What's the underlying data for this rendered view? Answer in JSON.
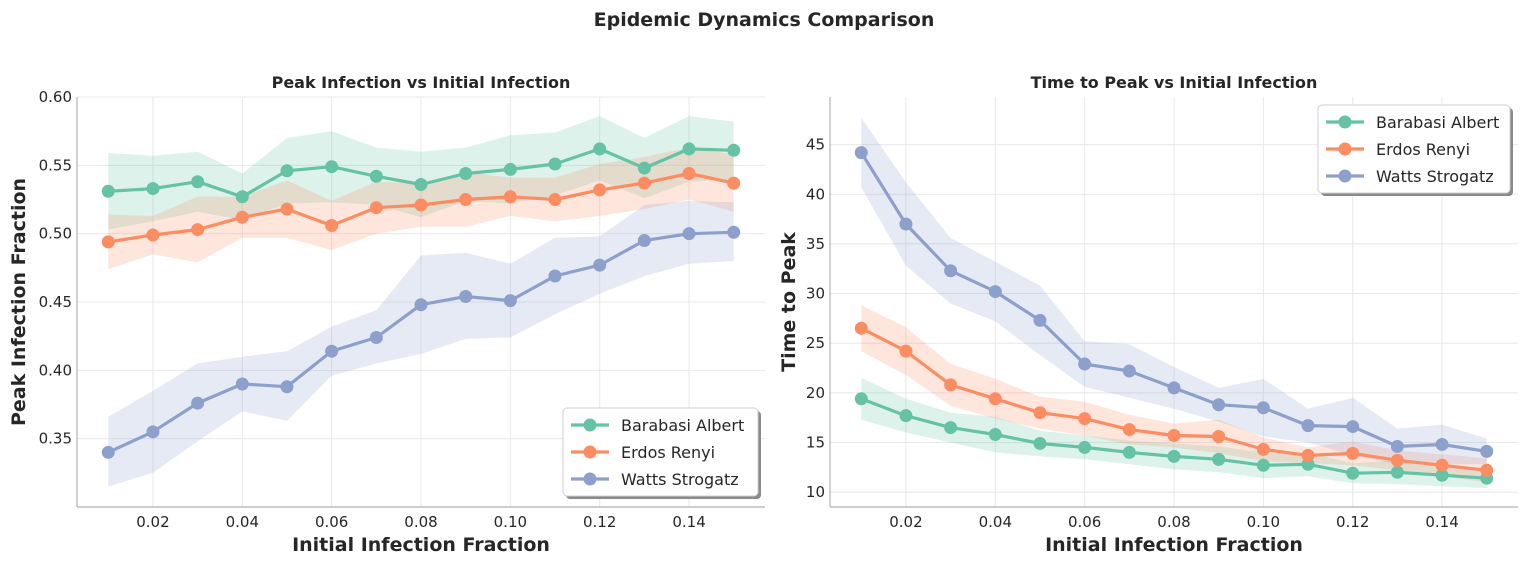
{
  "figure": {
    "title": "Epidemic Dynamics Comparison"
  },
  "chart_data": [
    {
      "type": "line",
      "title": "Peak Infection vs Initial Infection",
      "xlabel": "Initial Infection Fraction",
      "ylabel": "Peak Infection Fraction",
      "xlim": [
        0.003,
        0.157
      ],
      "ylim": [
        0.3,
        0.6
      ],
      "xticks": [
        0.02,
        0.04,
        0.06,
        0.08,
        0.1,
        0.12,
        0.14
      ],
      "xtick_labels": [
        "0.02",
        "0.04",
        "0.06",
        "0.08",
        "0.10",
        "0.12",
        "0.14"
      ],
      "yticks": [
        0.35,
        0.4,
        0.45,
        0.5,
        0.55,
        0.6
      ],
      "ytick_labels": [
        "0.35",
        "0.40",
        "0.45",
        "0.50",
        "0.55",
        "0.60"
      ],
      "grid": true,
      "legend_position": "lower-right",
      "x": [
        0.01,
        0.02,
        0.03,
        0.04,
        0.05,
        0.06,
        0.07,
        0.08,
        0.09,
        0.1,
        0.11,
        0.12,
        0.13,
        0.14,
        0.15
      ],
      "series": [
        {
          "name": "Barabasi Albert",
          "color": "#66c2a5",
          "values": [
            0.531,
            0.533,
            0.538,
            0.527,
            0.546,
            0.549,
            0.542,
            0.536,
            0.544,
            0.547,
            0.551,
            0.562,
            0.548,
            0.562,
            0.561
          ],
          "lower": [
            0.503,
            0.509,
            0.516,
            0.51,
            0.522,
            0.523,
            0.521,
            0.512,
            0.524,
            0.522,
            0.528,
            0.539,
            0.526,
            0.538,
            0.54
          ],
          "upper": [
            0.559,
            0.557,
            0.56,
            0.544,
            0.57,
            0.575,
            0.563,
            0.56,
            0.563,
            0.572,
            0.574,
            0.586,
            0.57,
            0.586,
            0.582
          ]
        },
        {
          "name": "Erdos Renyi",
          "color": "#fc8d62",
          "values": [
            0.494,
            0.499,
            0.503,
            0.512,
            0.518,
            0.506,
            0.519,
            0.521,
            0.525,
            0.527,
            0.525,
            0.532,
            0.537,
            0.544,
            0.537
          ],
          "lower": [
            0.474,
            0.485,
            0.479,
            0.497,
            0.497,
            0.488,
            0.5,
            0.505,
            0.505,
            0.513,
            0.509,
            0.513,
            0.518,
            0.525,
            0.516
          ],
          "upper": [
            0.514,
            0.513,
            0.527,
            0.527,
            0.539,
            0.524,
            0.538,
            0.537,
            0.545,
            0.541,
            0.541,
            0.551,
            0.556,
            0.563,
            0.558
          ]
        },
        {
          "name": "Watts Strogatz",
          "color": "#8da0cb",
          "values": [
            0.34,
            0.355,
            0.376,
            0.39,
            0.388,
            0.414,
            0.424,
            0.448,
            0.454,
            0.451,
            0.469,
            0.477,
            0.495,
            0.5,
            0.501
          ],
          "lower": [
            0.315,
            0.325,
            0.348,
            0.37,
            0.363,
            0.396,
            0.405,
            0.412,
            0.423,
            0.424,
            0.441,
            0.456,
            0.469,
            0.478,
            0.48
          ],
          "upper": [
            0.366,
            0.385,
            0.405,
            0.41,
            0.414,
            0.432,
            0.444,
            0.484,
            0.486,
            0.478,
            0.497,
            0.498,
            0.521,
            0.524,
            0.523
          ]
        }
      ]
    },
    {
      "type": "line",
      "title": "Time to Peak vs Initial Infection",
      "xlabel": "Initial Infection Fraction",
      "ylabel": "Time to Peak",
      "xlim": [
        0.003,
        0.157
      ],
      "ylim": [
        8.5,
        49.8
      ],
      "xticks": [
        0.02,
        0.04,
        0.06,
        0.08,
        0.1,
        0.12,
        0.14
      ],
      "xtick_labels": [
        "0.02",
        "0.04",
        "0.06",
        "0.08",
        "0.10",
        "0.12",
        "0.14"
      ],
      "yticks": [
        10,
        15,
        20,
        25,
        30,
        35,
        40,
        45
      ],
      "ytick_labels": [
        "10",
        "15",
        "20",
        "25",
        "30",
        "35",
        "40",
        "45"
      ],
      "grid": true,
      "legend_position": "upper-right",
      "x": [
        0.01,
        0.02,
        0.03,
        0.04,
        0.05,
        0.06,
        0.07,
        0.08,
        0.09,
        0.1,
        0.11,
        0.12,
        0.13,
        0.14,
        0.15
      ],
      "series": [
        {
          "name": "Barabasi Albert",
          "color": "#66c2a5",
          "values": [
            19.4,
            17.7,
            16.5,
            15.8,
            14.9,
            14.5,
            14.0,
            13.6,
            13.3,
            12.7,
            12.8,
            11.9,
            12.0,
            11.7,
            11.4
          ],
          "lower": [
            17.3,
            16.0,
            15.0,
            14.0,
            13.6,
            13.3,
            12.8,
            12.3,
            12.0,
            11.4,
            11.6,
            10.9,
            10.8,
            10.6,
            10.4
          ],
          "upper": [
            21.5,
            19.4,
            18.0,
            17.6,
            16.2,
            15.7,
            15.2,
            14.9,
            14.6,
            14.0,
            14.0,
            12.9,
            13.2,
            12.8,
            12.4
          ]
        },
        {
          "name": "Erdos Renyi",
          "color": "#fc8d62",
          "values": [
            26.5,
            24.2,
            20.8,
            19.4,
            18.0,
            17.4,
            16.3,
            15.7,
            15.6,
            14.3,
            13.7,
            13.9,
            13.2,
            12.7,
            12.2
          ],
          "lower": [
            24.2,
            21.8,
            18.7,
            17.4,
            16.4,
            15.7,
            14.8,
            14.5,
            13.9,
            13.1,
            12.9,
            12.7,
            12.2,
            11.6,
            11.0
          ],
          "upper": [
            28.8,
            26.6,
            22.9,
            21.4,
            19.6,
            19.1,
            17.8,
            16.9,
            17.3,
            15.5,
            14.5,
            15.1,
            14.2,
            13.8,
            13.4
          ]
        },
        {
          "name": "Watts Strogatz",
          "color": "#8da0cb",
          "values": [
            44.2,
            37.0,
            32.3,
            30.2,
            27.3,
            22.9,
            22.2,
            20.5,
            18.8,
            18.5,
            16.7,
            16.6,
            14.6,
            14.8,
            14.1
          ],
          "lower": [
            40.7,
            32.8,
            29.0,
            27.2,
            23.8,
            20.6,
            19.5,
            18.4,
            17.1,
            15.6,
            15.0,
            13.7,
            12.8,
            12.8,
            12.8
          ],
          "upper": [
            47.7,
            41.2,
            35.6,
            33.2,
            30.8,
            25.2,
            24.9,
            22.6,
            20.5,
            21.4,
            18.4,
            19.5,
            16.4,
            16.8,
            15.4
          ]
        }
      ]
    }
  ]
}
